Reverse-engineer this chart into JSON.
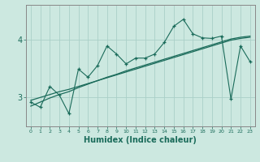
{
  "xlabel": "Humidex (Indice chaleur)",
  "bg_color": "#cce8e0",
  "grid_color": "#aacfc8",
  "line_color": "#1a6b5a",
  "x_values": [
    0,
    1,
    2,
    3,
    4,
    5,
    6,
    7,
    8,
    9,
    10,
    11,
    12,
    13,
    14,
    15,
    16,
    17,
    18,
    19,
    20,
    21,
    22,
    23
  ],
  "y_main": [
    2.92,
    2.83,
    3.19,
    3.04,
    2.72,
    3.49,
    3.35,
    3.55,
    3.89,
    3.75,
    3.58,
    3.68,
    3.68,
    3.75,
    3.95,
    4.23,
    4.35,
    4.1,
    4.03,
    4.02,
    4.06,
    2.97,
    3.89,
    3.62
  ],
  "y_trend1": [
    2.95,
    3.0,
    3.05,
    3.1,
    3.14,
    3.19,
    3.24,
    3.29,
    3.34,
    3.39,
    3.44,
    3.49,
    3.54,
    3.59,
    3.64,
    3.69,
    3.74,
    3.79,
    3.84,
    3.89,
    3.94,
    3.99,
    4.02,
    4.04
  ],
  "y_trend2": [
    2.85,
    2.92,
    2.99,
    3.05,
    3.1,
    3.17,
    3.23,
    3.29,
    3.35,
    3.4,
    3.46,
    3.51,
    3.56,
    3.61,
    3.66,
    3.71,
    3.76,
    3.81,
    3.86,
    3.91,
    3.96,
    4.01,
    4.04,
    4.06
  ],
  "yticks": [
    3,
    4
  ],
  "ylim": [
    2.5,
    4.6
  ],
  "xlim": [
    -0.5,
    23.5
  ]
}
